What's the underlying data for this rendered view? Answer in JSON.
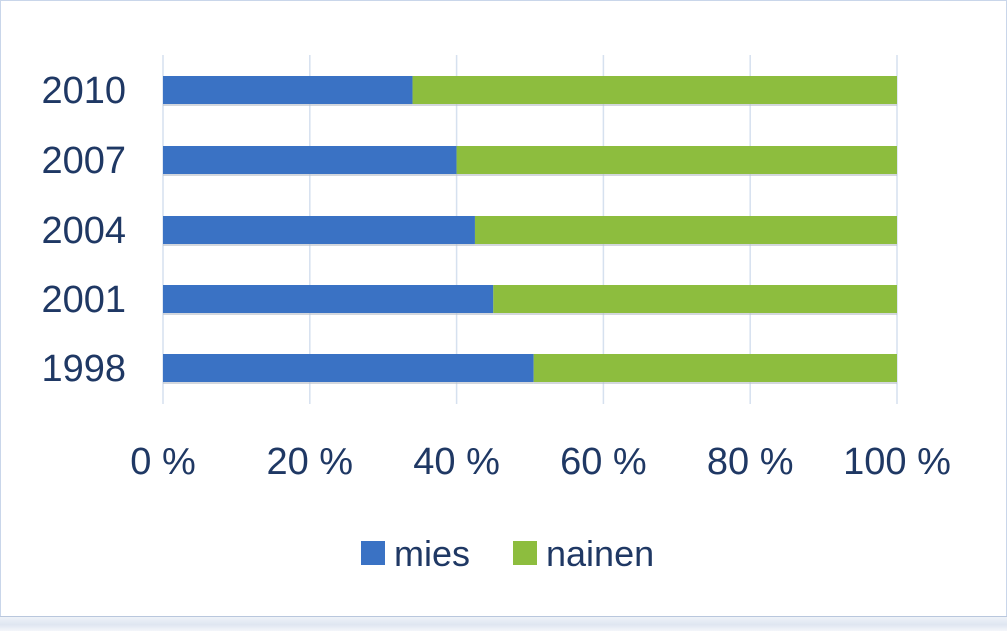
{
  "colors": {
    "mies": "#3a72c4",
    "nainen": "#8dbd3e",
    "grid": "#d6e1ef",
    "text": "#1f3864"
  },
  "chart_data": {
    "type": "bar",
    "orientation": "horizontal",
    "stacked": true,
    "percent_stacked": true,
    "categories": [
      "2010",
      "2007",
      "2004",
      "2001",
      "1998"
    ],
    "series": [
      {
        "name": "mies",
        "values": [
          34,
          40,
          42.5,
          45,
          50.5
        ]
      },
      {
        "name": "nainen",
        "values": [
          66,
          60,
          57.5,
          55,
          49.5
        ]
      }
    ],
    "xlim": [
      0,
      100
    ],
    "x_ticks": [
      "0 %",
      "20 %",
      "40 %",
      "60 %",
      "80 %",
      "100 %"
    ],
    "grid": true,
    "legend_position": "bottom"
  }
}
